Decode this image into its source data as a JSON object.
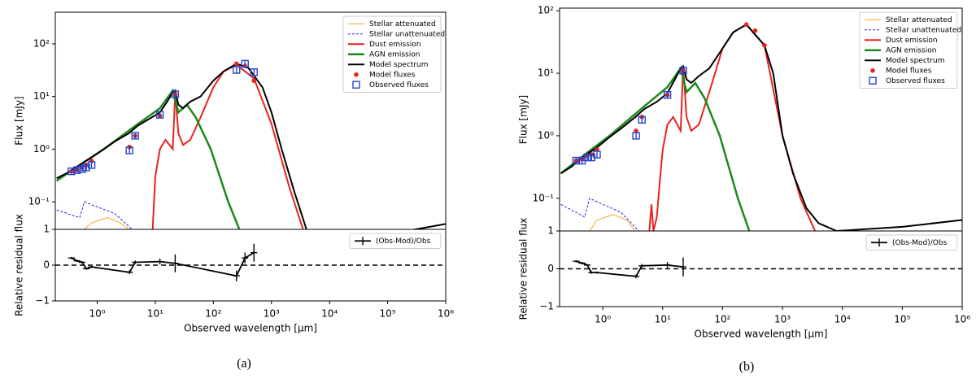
{
  "captions": [
    "(a)",
    "(b)"
  ],
  "chart_data": [
    {
      "type": "line",
      "xscale": "log",
      "yscale": "log",
      "ylabel": "Flux [mJy]",
      "xlim": [
        0.19,
        1000000
      ],
      "ylim": [
        0.03,
        400
      ],
      "yticks": [
        {
          "value": 0.1,
          "label": "10⁻¹"
        },
        {
          "value": 1,
          "label": "10⁰"
        },
        {
          "value": 10,
          "label": "10¹"
        },
        {
          "value": 100,
          "label": "10²"
        }
      ],
      "legend": "upper right",
      "series": [
        {
          "name": "Stellar attenuated",
          "color": "#f5a623",
          "linestyle": "solid",
          "linewidth": 1,
          "x": [
            0.6,
            0.8,
            1.5,
            2.5,
            3.5
          ],
          "values": [
            0.03,
            0.04,
            0.05,
            0.04,
            0.03
          ]
        },
        {
          "name": "Stellar unattenuated",
          "color": "#2222dd",
          "linestyle": "dashed",
          "linewidth": 1,
          "x": [
            0.2,
            0.5,
            0.6,
            1,
            2,
            4
          ],
          "values": [
            0.07,
            0.05,
            0.1,
            0.08,
            0.06,
            0.03
          ]
        },
        {
          "name": "Dust emission",
          "color": "#e8231d",
          "linestyle": "solid",
          "linewidth": 2,
          "x": [
            9,
            10,
            12,
            15,
            20,
            22,
            25,
            30,
            40,
            60,
            100,
            150,
            250,
            500,
            1000,
            2000,
            3500
          ],
          "values": [
            0.03,
            0.3,
            1,
            1.5,
            1,
            12,
            2,
            1.2,
            1.5,
            4,
            15,
            30,
            40,
            22,
            3,
            0.2,
            0.03
          ]
        },
        {
          "name": "AGN emission",
          "color": "#1a8a1a",
          "linestyle": "solid",
          "linewidth": 2.5,
          "x": [
            0.2,
            0.5,
            1.3,
            5,
            12,
            20,
            25,
            35,
            50,
            90,
            180,
            280
          ],
          "values": [
            0.25,
            0.5,
            1,
            3,
            6,
            13,
            5,
            7,
            4,
            1,
            0.1,
            0.03
          ]
        },
        {
          "name": "Model spectrum",
          "color": "#000000",
          "linestyle": "solid",
          "linewidth": 2,
          "x": [
            0.2,
            0.3,
            0.5,
            0.8,
            1.3,
            2,
            3.5,
            5,
            8,
            12,
            16,
            20,
            22,
            25,
            30,
            40,
            60,
            100,
            150,
            250,
            400,
            700,
            1000,
            1500,
            2500,
            4000,
            6000,
            100000,
            300000,
            1000000
          ],
          "values": [
            0.28,
            0.35,
            0.5,
            0.7,
            1,
            1.4,
            2,
            2.8,
            3.8,
            5,
            8,
            12,
            13,
            7,
            6,
            8,
            10,
            20,
            30,
            42,
            35,
            15,
            5,
            1,
            0.15,
            0.03,
            0.01,
            0.025,
            0.03,
            0.038
          ]
        },
        {
          "name": "Model fluxes",
          "color": "#e8231d",
          "marker": "o",
          "x": [
            0.36,
            0.45,
            0.55,
            0.65,
            0.8,
            3.6,
            4.5,
            12,
            22,
            250,
            350,
            500
          ],
          "values": [
            0.38,
            0.4,
            0.45,
            0.5,
            0.6,
            1.1,
            1.8,
            4.3,
            11,
            42,
            38,
            20
          ]
        },
        {
          "name": "Observed fluxes",
          "color": "#2244cc",
          "marker": "s",
          "x": [
            0.36,
            0.45,
            0.55,
            0.65,
            0.8,
            3.6,
            4.5,
            12,
            22,
            250,
            350,
            500
          ],
          "values": [
            0.38,
            0.4,
            0.42,
            0.45,
            0.5,
            0.95,
            1.8,
            4.5,
            11,
            32,
            42,
            29
          ],
          "errors": [
            0.04,
            0.04,
            0.04,
            0.05,
            0.05,
            0.1,
            0.2,
            0.5,
            1.2,
            5,
            5,
            5
          ]
        }
      ]
    },
    {
      "type": "line",
      "xscale": "log",
      "yscale": "linear",
      "ylabel": "Relative residual flux",
      "xlabel": "Observed wavelength [μm]",
      "xlim": [
        0.19,
        1000000
      ],
      "ylim": [
        -1,
        1
      ],
      "yticks": [
        {
          "value": -1,
          "label": "−1"
        },
        0,
        1
      ],
      "xticks": [
        {
          "value": 1,
          "label": "10⁰"
        },
        {
          "value": 10,
          "label": "10¹"
        },
        {
          "value": 100,
          "label": "10²"
        },
        {
          "value": 1000,
          "label": "10³"
        },
        {
          "value": 10000,
          "label": "10⁴"
        },
        {
          "value": 100000,
          "label": "10⁵"
        },
        {
          "value": 1000000,
          "label": "10⁶"
        }
      ],
      "reference_line": 0,
      "legend": "upper right",
      "series": [
        {
          "name": "(Obs-Mod)/Obs",
          "color": "#000000",
          "marker": "+",
          "x": [
            0.36,
            0.45,
            0.55,
            0.65,
            0.8,
            3.6,
            4.5,
            12,
            22,
            250,
            350,
            500
          ],
          "values": [
            0.2,
            0.12,
            0.08,
            -0.1,
            -0.05,
            -0.2,
            0.08,
            0.1,
            0.05,
            -0.3,
            0.2,
            0.35
          ],
          "errors": [
            0.03,
            0.03,
            0.03,
            0.03,
            0.03,
            0.05,
            0.05,
            0.08,
            0.25,
            0.15,
            0.15,
            0.25
          ]
        }
      ]
    },
    {
      "type": "line",
      "xscale": "log",
      "yscale": "log",
      "ylabel": "Flux [mJy]",
      "xlim": [
        0.19,
        1000000
      ],
      "ylim": [
        0.03,
        110
      ],
      "yticks": [
        {
          "value": 0.1,
          "label": "10⁻¹"
        },
        {
          "value": 1,
          "label": "10⁰"
        },
        {
          "value": 10,
          "label": "10¹"
        },
        {
          "value": 100,
          "label": "10²"
        }
      ],
      "legend": "upper right",
      "series": [
        {
          "name": "Stellar attenuated",
          "color": "#f5a623",
          "linestyle": "solid",
          "linewidth": 1,
          "x": [
            0.6,
            0.8,
            1.5,
            2.5,
            3.5
          ],
          "values": [
            0.03,
            0.045,
            0.055,
            0.045,
            0.03
          ]
        },
        {
          "name": "Stellar unattenuated",
          "color": "#2222dd",
          "linestyle": "dashed",
          "linewidth": 1,
          "x": [
            0.2,
            0.5,
            0.6,
            1,
            2,
            4
          ],
          "values": [
            0.08,
            0.05,
            0.1,
            0.08,
            0.06,
            0.03
          ]
        },
        {
          "name": "Dust emission",
          "color": "#e8231d",
          "linestyle": "solid",
          "linewidth": 2,
          "x": [
            6,
            6.5,
            7,
            8,
            9,
            10,
            12,
            15,
            20,
            22,
            25,
            30,
            40,
            60,
            100,
            150,
            250,
            500,
            1000,
            2000,
            3500
          ],
          "values": [
            0.03,
            0.08,
            0.03,
            0.05,
            0.2,
            0.6,
            1.5,
            2,
            1.2,
            13,
            2,
            1.2,
            1.5,
            5,
            25,
            45,
            60,
            28,
            1,
            0.1,
            0.03
          ]
        },
        {
          "name": "AGN emission",
          "color": "#1a8a1a",
          "linestyle": "solid",
          "linewidth": 2.5,
          "x": [
            0.2,
            0.5,
            1.3,
            5,
            12,
            20,
            25,
            35,
            50,
            90,
            180,
            280
          ],
          "values": [
            0.25,
            0.5,
            1,
            3,
            6,
            12,
            5,
            7,
            4,
            1,
            0.1,
            0.03
          ]
        },
        {
          "name": "Model spectrum",
          "color": "#000000",
          "linestyle": "solid",
          "linewidth": 2,
          "x": [
            0.2,
            0.3,
            0.5,
            0.8,
            1.3,
            2,
            3.5,
            5,
            8,
            12,
            16,
            20,
            22,
            25,
            30,
            40,
            60,
            100,
            150,
            250,
            500,
            700,
            1000,
            1500,
            2500,
            4000,
            8000,
            100000,
            1000000
          ],
          "values": [
            0.25,
            0.32,
            0.48,
            0.65,
            0.95,
            1.3,
            2,
            2.7,
            3.5,
            4.8,
            8,
            12,
            13,
            8,
            7,
            9,
            12,
            25,
            45,
            60,
            28,
            10,
            1,
            0.25,
            0.07,
            0.04,
            0.03,
            0.035,
            0.045
          ]
        },
        {
          "name": "Model fluxes",
          "color": "#e8231d",
          "marker": "o",
          "x": [
            0.36,
            0.45,
            0.55,
            0.65,
            0.8,
            3.6,
            4.5,
            12,
            22,
            250,
            350,
            500
          ],
          "values": [
            0.4,
            0.42,
            0.48,
            0.5,
            0.6,
            1.2,
            2,
            4.5,
            11,
            60,
            48,
            28
          ]
        },
        {
          "name": "Observed fluxes",
          "color": "#2244cc",
          "marker": "s",
          "x": [
            0.36,
            0.45,
            0.55,
            0.65,
            0.8,
            3.6,
            4.5,
            12,
            22
          ],
          "values": [
            0.4,
            0.4,
            0.45,
            0.45,
            0.5,
            1,
            1.8,
            4.5,
            11
          ],
          "errors": [
            0.04,
            0.04,
            0.04,
            0.05,
            0.05,
            0.1,
            0.2,
            0.5,
            1.2
          ]
        }
      ]
    },
    {
      "type": "line",
      "xscale": "log",
      "yscale": "linear",
      "ylabel": "Relative residual flux",
      "xlabel": "Observed wavelength [μm]",
      "xlim": [
        0.19,
        1000000
      ],
      "ylim": [
        -1,
        1
      ],
      "yticks": [
        {
          "value": -1,
          "label": "−1"
        },
        0,
        1
      ],
      "xticks": [
        {
          "value": 1,
          "label": "10⁰"
        },
        {
          "value": 10,
          "label": "10¹"
        },
        {
          "value": 100,
          "label": "10²"
        },
        {
          "value": 1000,
          "label": "10³"
        },
        {
          "value": 10000,
          "label": "10⁴"
        },
        {
          "value": 100000,
          "label": "10⁵"
        },
        {
          "value": 1000000,
          "label": "10⁶"
        }
      ],
      "reference_line": 0,
      "legend": "upper right",
      "series": [
        {
          "name": "(Obs-Mod)/Obs",
          "color": "#000000",
          "marker": "+",
          "x": [
            0.36,
            0.45,
            0.55,
            0.65,
            0.8,
            3.6,
            4.5,
            12,
            22
          ],
          "values": [
            0.2,
            0.15,
            0.1,
            -0.1,
            -0.1,
            -0.2,
            0.08,
            0.1,
            0.05
          ],
          "errors": [
            0.03,
            0.03,
            0.03,
            0.03,
            0.03,
            0.05,
            0.05,
            0.08,
            0.25
          ]
        }
      ]
    }
  ]
}
